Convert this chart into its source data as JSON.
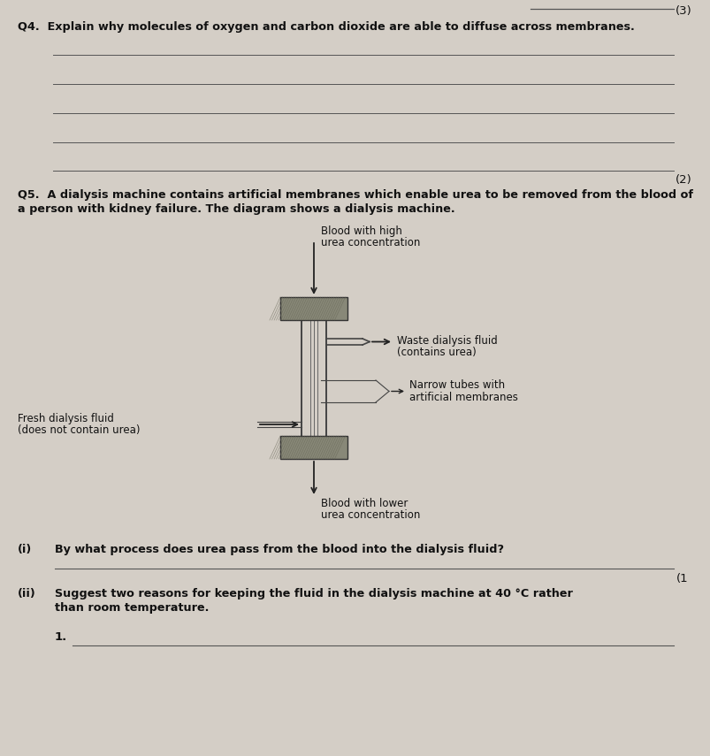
{
  "bg_color": "#d4cec6",
  "text_color": "#000000",
  "q4_mark": "(3)",
  "q4_question": "Q4.  Explain why molecules of oxygen and carbon dioxide are able to diffuse across membranes.",
  "q4_answer_mark": "(2)",
  "q5_question_line1": "Q5.  A dialysis machine contains artificial membranes which enable urea to be removed from the blood of",
  "q5_question_line2": "a person with kidney failure. The diagram shows a dialysis machine.",
  "label_blood_in_1": "Blood with high",
  "label_blood_in_2": "urea concentration",
  "label_blood_out_1": "Blood with lower",
  "label_blood_out_2": "urea concentration",
  "label_waste_1": "Waste dialysis fluid",
  "label_waste_2": "(contains urea)",
  "label_fresh_1": "Fresh dialysis fluid",
  "label_fresh_2": "(does not contain urea)",
  "label_narrow_1": "Narrow tubes with",
  "label_narrow_2": "artificial membranes",
  "q5i_label": "(i)",
  "q5i_question": "By what process does urea pass from the blood into the dialysis fluid?",
  "q5i_mark": "(1",
  "q5ii_label": "(ii)",
  "q5ii_q1": "Suggest two reasons for keeping the fluid in the dialysis machine at 40 °C rather",
  "q5ii_q2": "than room temperature.",
  "q5ii_item": "1."
}
